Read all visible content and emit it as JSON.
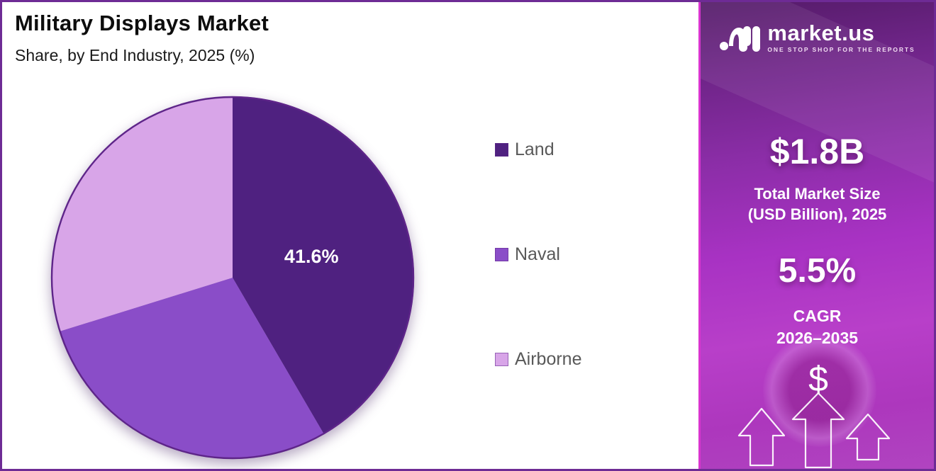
{
  "chart": {
    "title": "Military Displays Market",
    "subtitle": "Share, by End Industry, 2025 (%)",
    "chart_data": {
      "type": "pie",
      "categories": [
        "Land",
        "Naval",
        "Airborne"
      ],
      "values": [
        41.6,
        28.6,
        29.8
      ],
      "colors": [
        "#4F2180",
        "#8A4DC8",
        "#D8A5E8"
      ],
      "labels": [
        "41.6%",
        "",
        ""
      ],
      "start_angle_deg": -90,
      "direction": "clockwise",
      "legend_position": "right",
      "outline_color": "#5E2589"
    },
    "legend": [
      {
        "label": "Land"
      },
      {
        "label": "Naval"
      },
      {
        "label": "Airborne"
      }
    ]
  },
  "sidebar": {
    "logo": {
      "brand": "market.us",
      "tagline": "ONE STOP SHOP FOR THE REPORTS"
    },
    "stats": {
      "market_size_value": "$1.8B",
      "market_size_caption_line1": "Total Market Size",
      "market_size_caption_line2": "(USD Billion), 2025",
      "cagr_value": "5.5%",
      "cagr_caption_line1": "CAGR",
      "cagr_caption_line2": "2026–2035"
    },
    "icons": {
      "dollar": "$"
    }
  }
}
